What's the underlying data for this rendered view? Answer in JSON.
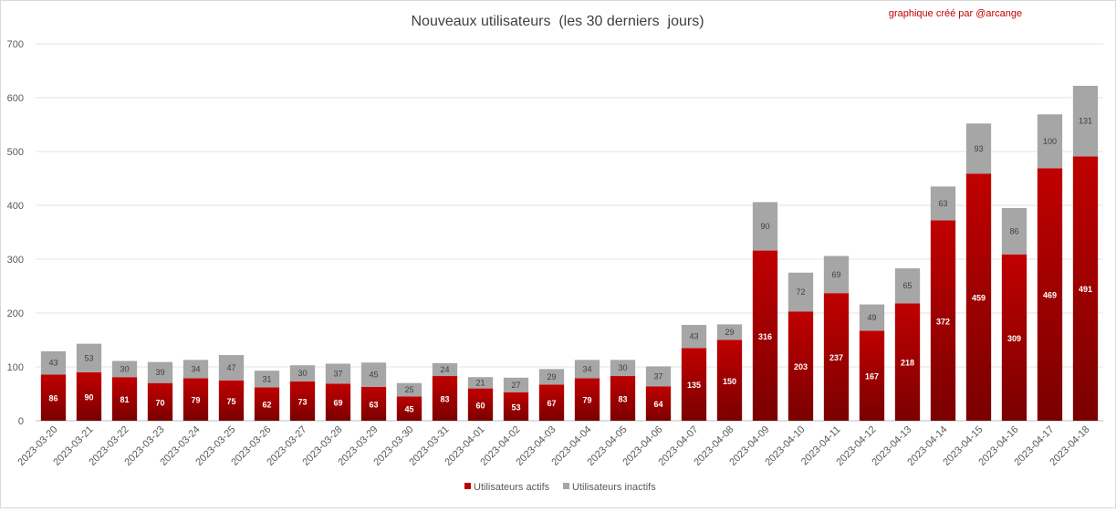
{
  "chart_data": {
    "type": "bar",
    "stacked": true,
    "title": "Nouveaux utilisateurs  (les 30 derniers  jours)",
    "credit": "graphique créé par @arcange",
    "xlabel": "",
    "ylabel": "",
    "ylim": [
      0,
      700
    ],
    "yticks": [
      0,
      100,
      200,
      300,
      400,
      500,
      600,
      700
    ],
    "grid": true,
    "legend_position": "bottom",
    "categories": [
      "2023-03-20",
      "2023-03-21",
      "2023-03-22",
      "2023-03-23",
      "2023-03-24",
      "2023-03-25",
      "2023-03-26",
      "2023-03-27",
      "2023-03-28",
      "2023-03-29",
      "2023-03-30",
      "2023-03-31",
      "2023-04-01",
      "2023-04-02",
      "2023-04-03",
      "2023-04-04",
      "2023-04-05",
      "2023-04-06",
      "2023-04-07",
      "2023-04-08",
      "2023-04-09",
      "2023-04-10",
      "2023-04-11",
      "2023-04-12",
      "2023-04-13",
      "2023-04-14",
      "2023-04-15",
      "2023-04-16",
      "2023-04-17",
      "2023-04-18"
    ],
    "series": [
      {
        "name": "Utilisateurs actifs",
        "color": "#c00000",
        "values": [
          86,
          90,
          81,
          70,
          79,
          75,
          62,
          73,
          69,
          63,
          45,
          83,
          60,
          53,
          67,
          79,
          83,
          64,
          135,
          150,
          316,
          203,
          237,
          167,
          218,
          372,
          459,
          309,
          469,
          491
        ]
      },
      {
        "name": "Utilisateurs inactifs",
        "color": "#a6a6a6",
        "values": [
          43,
          53,
          30,
          39,
          34,
          47,
          31,
          30,
          37,
          45,
          25,
          24,
          21,
          27,
          29,
          34,
          30,
          37,
          43,
          29,
          90,
          72,
          69,
          49,
          65,
          63,
          93,
          86,
          100,
          131
        ]
      }
    ]
  }
}
